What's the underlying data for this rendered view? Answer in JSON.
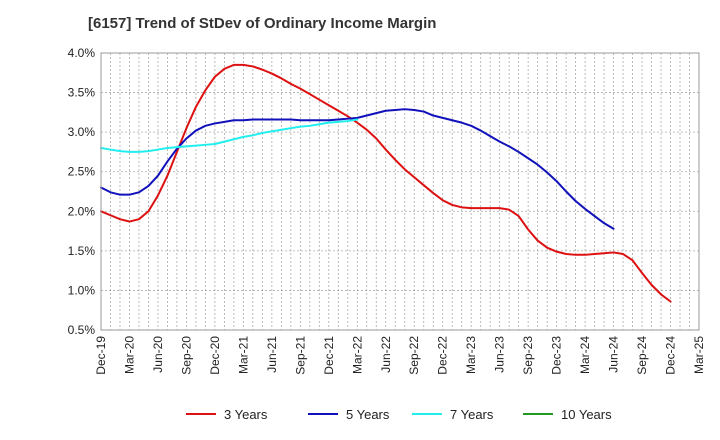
{
  "chart_data": {
    "type": "line",
    "title": "[6157]  Trend of StDev of Ordinary Income Margin",
    "xlabel": "",
    "ylabel": "",
    "ylim": [
      0.5,
      4.0
    ],
    "grid": true,
    "legend": "bottom",
    "x_ticks": [
      "Dec-19",
      "Mar-20",
      "Jun-20",
      "Sep-20",
      "Dec-20",
      "Mar-21",
      "Jun-21",
      "Sep-21",
      "Dec-21",
      "Mar-22",
      "Jun-22",
      "Sep-22",
      "Dec-22",
      "Mar-23",
      "Jun-23",
      "Sep-23",
      "Dec-23",
      "Mar-24",
      "Jun-24",
      "Sep-24",
      "Dec-24",
      "Mar-25"
    ],
    "y_ticks": [
      {
        "value": 0.5,
        "label": "0.5%"
      },
      {
        "value": 1.0,
        "label": "1.0%"
      },
      {
        "value": 1.5,
        "label": "1.5%"
      },
      {
        "value": 2.0,
        "label": "2.0%"
      },
      {
        "value": 2.5,
        "label": "2.5%"
      },
      {
        "value": 3.0,
        "label": "3.0%"
      },
      {
        "value": 3.5,
        "label": "3.5%"
      },
      {
        "value": 4.0,
        "label": "4.0%"
      }
    ],
    "series": [
      {
        "name": "3 Years",
        "color": "#dd1111",
        "points": [
          [
            "Dec-19",
            2.0
          ],
          [
            "Jan-20",
            1.95
          ],
          [
            "Feb-20",
            1.9
          ],
          [
            "Mar-20",
            1.87
          ],
          [
            "Apr-20",
            1.9
          ],
          [
            "May-20",
            2.0
          ],
          [
            "Jun-20",
            2.2
          ],
          [
            "Jul-20",
            2.45
          ],
          [
            "Aug-20",
            2.75
          ],
          [
            "Sep-20",
            3.05
          ],
          [
            "Oct-20",
            3.32
          ],
          [
            "Nov-20",
            3.53
          ],
          [
            "Dec-20",
            3.7
          ],
          [
            "Jan-21",
            3.8
          ],
          [
            "Feb-21",
            3.85
          ],
          [
            "Mar-21",
            3.85
          ],
          [
            "Apr-21",
            3.83
          ],
          [
            "May-21",
            3.79
          ],
          [
            "Jun-21",
            3.74
          ],
          [
            "Jul-21",
            3.68
          ],
          [
            "Aug-21",
            3.61
          ],
          [
            "Sep-21",
            3.55
          ],
          [
            "Oct-21",
            3.48
          ],
          [
            "Nov-21",
            3.41
          ],
          [
            "Dec-21",
            3.34
          ],
          [
            "Jan-22",
            3.27
          ],
          [
            "Feb-22",
            3.2
          ],
          [
            "Mar-22",
            3.12
          ],
          [
            "Apr-22",
            3.03
          ],
          [
            "May-22",
            2.92
          ],
          [
            "Jun-22",
            2.78
          ],
          [
            "Jul-22",
            2.65
          ],
          [
            "Aug-22",
            2.53
          ],
          [
            "Sep-22",
            2.43
          ],
          [
            "Oct-22",
            2.33
          ],
          [
            "Nov-22",
            2.23
          ],
          [
            "Dec-22",
            2.14
          ],
          [
            "Jan-23",
            2.08
          ],
          [
            "Feb-23",
            2.05
          ],
          [
            "Mar-23",
            2.04
          ],
          [
            "Apr-23",
            2.04
          ],
          [
            "May-23",
            2.04
          ],
          [
            "Jun-23",
            2.04
          ],
          [
            "Jul-23",
            2.02
          ],
          [
            "Aug-23",
            1.94
          ],
          [
            "Sep-23",
            1.77
          ],
          [
            "Oct-23",
            1.63
          ],
          [
            "Nov-23",
            1.54
          ],
          [
            "Dec-23",
            1.49
          ],
          [
            "Jan-24",
            1.46
          ],
          [
            "Feb-24",
            1.45
          ],
          [
            "Mar-24",
            1.45
          ],
          [
            "Apr-24",
            1.46
          ],
          [
            "May-24",
            1.47
          ],
          [
            "Jun-24",
            1.48
          ],
          [
            "Jul-24",
            1.46
          ],
          [
            "Aug-24",
            1.38
          ],
          [
            "Sep-24",
            1.22
          ],
          [
            "Oct-24",
            1.07
          ],
          [
            "Nov-24",
            0.95
          ],
          [
            "Dec-24",
            0.86
          ]
        ]
      },
      {
        "name": "5 Years",
        "color": "#1111bb",
        "points": [
          [
            "Dec-19",
            2.3
          ],
          [
            "Jan-20",
            2.24
          ],
          [
            "Feb-20",
            2.21
          ],
          [
            "Mar-20",
            2.21
          ],
          [
            "Apr-20",
            2.24
          ],
          [
            "May-20",
            2.32
          ],
          [
            "Jun-20",
            2.45
          ],
          [
            "Jul-20",
            2.63
          ],
          [
            "Aug-20",
            2.79
          ],
          [
            "Sep-20",
            2.92
          ],
          [
            "Oct-20",
            3.02
          ],
          [
            "Nov-20",
            3.08
          ],
          [
            "Dec-20",
            3.11
          ],
          [
            "Jan-21",
            3.13
          ],
          [
            "Feb-21",
            3.15
          ],
          [
            "Mar-21",
            3.15
          ],
          [
            "Apr-21",
            3.16
          ],
          [
            "May-21",
            3.16
          ],
          [
            "Jun-21",
            3.16
          ],
          [
            "Jul-21",
            3.16
          ],
          [
            "Aug-21",
            3.16
          ],
          [
            "Sep-21",
            3.15
          ],
          [
            "Oct-21",
            3.15
          ],
          [
            "Nov-21",
            3.15
          ],
          [
            "Dec-21",
            3.15
          ],
          [
            "Jan-22",
            3.16
          ],
          [
            "Feb-22",
            3.17
          ],
          [
            "Mar-22",
            3.18
          ],
          [
            "Apr-22",
            3.21
          ],
          [
            "May-22",
            3.24
          ],
          [
            "Jun-22",
            3.27
          ],
          [
            "Jul-22",
            3.28
          ],
          [
            "Aug-22",
            3.29
          ],
          [
            "Sep-22",
            3.28
          ],
          [
            "Oct-22",
            3.26
          ],
          [
            "Nov-22",
            3.21
          ],
          [
            "Dec-22",
            3.18
          ],
          [
            "Jan-23",
            3.15
          ],
          [
            "Feb-23",
            3.12
          ],
          [
            "Mar-23",
            3.08
          ],
          [
            "Apr-23",
            3.02
          ],
          [
            "May-23",
            2.95
          ],
          [
            "Jun-23",
            2.88
          ],
          [
            "Jul-23",
            2.82
          ],
          [
            "Aug-23",
            2.75
          ],
          [
            "Sep-23",
            2.67
          ],
          [
            "Oct-23",
            2.59
          ],
          [
            "Nov-23",
            2.49
          ],
          [
            "Dec-23",
            2.38
          ],
          [
            "Jan-24",
            2.25
          ],
          [
            "Feb-24",
            2.13
          ],
          [
            "Mar-24",
            2.03
          ],
          [
            "Apr-24",
            1.94
          ],
          [
            "May-24",
            1.85
          ],
          [
            "Jun-24",
            1.78
          ]
        ]
      },
      {
        "name": "7 Years",
        "color": "#22eeee",
        "points": [
          [
            "Dec-19",
            2.8
          ],
          [
            "Jan-20",
            2.78
          ],
          [
            "Feb-20",
            2.76
          ],
          [
            "Mar-20",
            2.75
          ],
          [
            "Apr-20",
            2.75
          ],
          [
            "May-20",
            2.76
          ],
          [
            "Jun-20",
            2.78
          ],
          [
            "Jul-20",
            2.8
          ],
          [
            "Aug-20",
            2.81
          ],
          [
            "Sep-20",
            2.82
          ],
          [
            "Oct-20",
            2.83
          ],
          [
            "Nov-20",
            2.84
          ],
          [
            "Dec-20",
            2.85
          ],
          [
            "Jan-21",
            2.88
          ],
          [
            "Feb-21",
            2.91
          ],
          [
            "Mar-21",
            2.94
          ],
          [
            "Apr-21",
            2.96
          ],
          [
            "May-21",
            2.99
          ],
          [
            "Jun-21",
            3.01
          ],
          [
            "Jul-21",
            3.03
          ],
          [
            "Aug-21",
            3.05
          ],
          [
            "Sep-21",
            3.07
          ],
          [
            "Oct-21",
            3.08
          ],
          [
            "Nov-21",
            3.1
          ],
          [
            "Dec-21",
            3.12
          ],
          [
            "Jan-22",
            3.13
          ],
          [
            "Feb-22",
            3.14
          ],
          [
            "Mar-22",
            3.16
          ]
        ]
      },
      {
        "name": "10 Years",
        "color": "#229922",
        "points": []
      }
    ]
  }
}
